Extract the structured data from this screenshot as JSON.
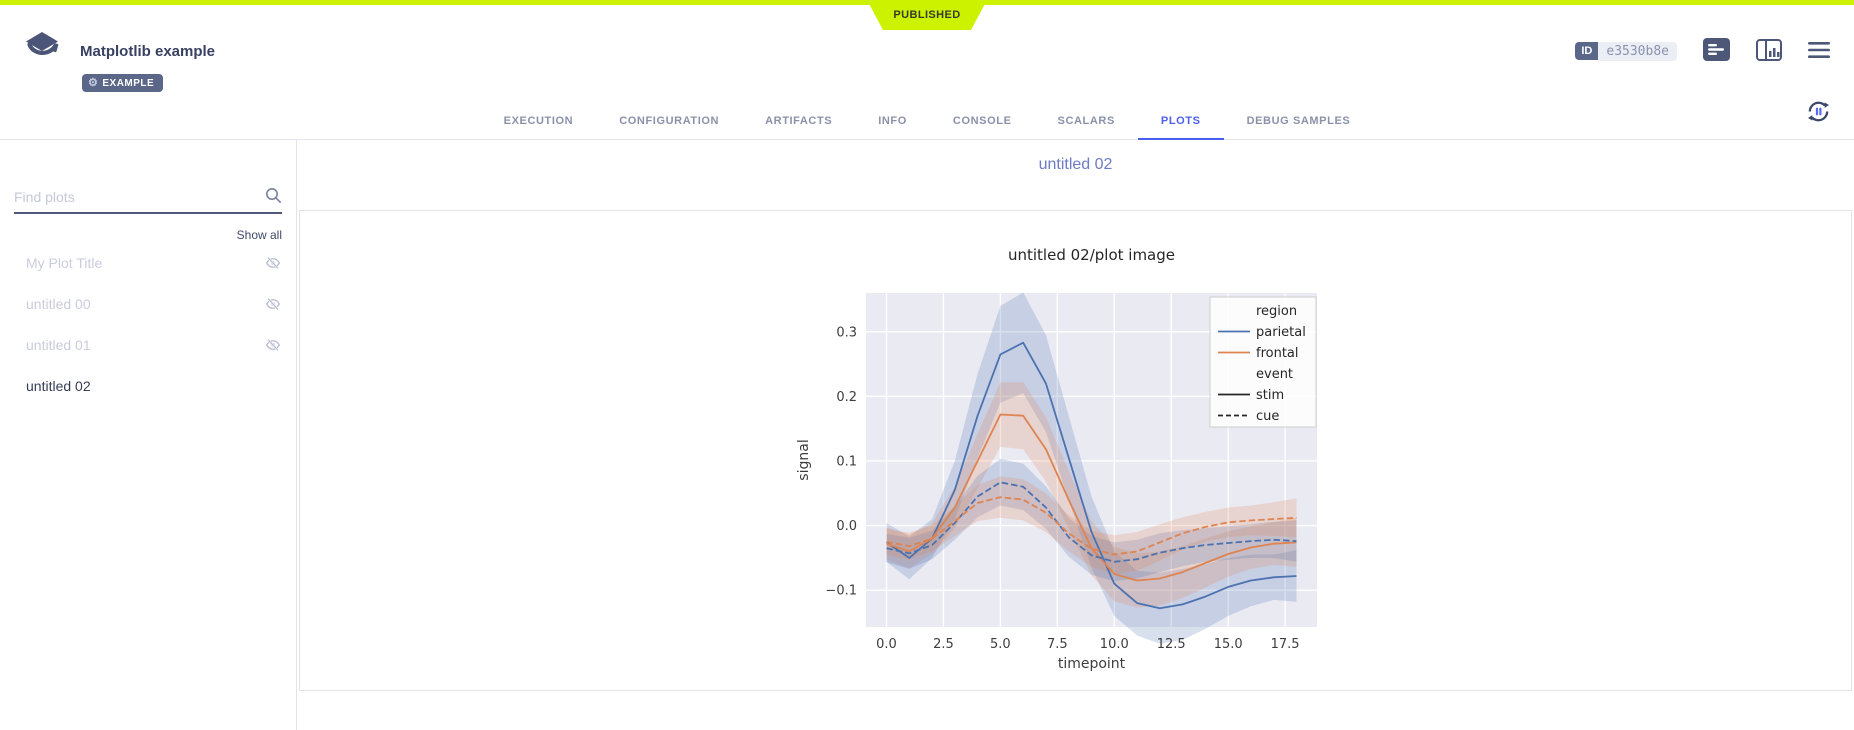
{
  "page": {
    "published_badge": "PUBLISHED"
  },
  "header": {
    "title": "Matplotlib example",
    "tag": "EXAMPLE",
    "id_label": "ID",
    "id_value": "e3530b8e",
    "tabs": [
      "EXECUTION",
      "CONFIGURATION",
      "ARTIFACTS",
      "INFO",
      "CONSOLE",
      "SCALARS",
      "PLOTS",
      "DEBUG SAMPLES"
    ],
    "active_tab": "PLOTS"
  },
  "sidebar": {
    "search_placeholder": "Find plots",
    "show_all_label": "Show all",
    "plots": [
      {
        "label": "My Plot Title",
        "hidden": true,
        "selected": false
      },
      {
        "label": "untitled 00",
        "hidden": true,
        "selected": false
      },
      {
        "label": "untitled 01",
        "hidden": true,
        "selected": false
      },
      {
        "label": "untitled 02",
        "hidden": false,
        "selected": true
      }
    ]
  },
  "main": {
    "heading": "untitled 02"
  },
  "colors": {
    "accent_green": "#cdf200",
    "navy": "#384161",
    "icon_navy": "#4d5878",
    "tab_active_blue": "#4a5ff0",
    "series_blue": "#4c72b0",
    "series_orange": "#dd8452",
    "plot_bg": "#eaeaf2"
  },
  "chart_data": {
    "type": "line",
    "title": "untitled 02/plot image",
    "xlabel": "timepoint",
    "ylabel": "signal",
    "xlim": [
      -0.9,
      18.9
    ],
    "ylim": [
      -0.157,
      0.36
    ],
    "xticks": [
      0.0,
      2.5,
      5.0,
      7.5,
      10.0,
      12.5,
      15.0,
      17.5
    ],
    "yticks": [
      -0.1,
      0.0,
      0.1,
      0.2,
      0.3
    ],
    "grid": true,
    "style": "seaborn-darkgrid",
    "legend_position": "upper right",
    "x": [
      0,
      1,
      2,
      3,
      4,
      5,
      6,
      7,
      8,
      9,
      10,
      11,
      12,
      13,
      14,
      15,
      16,
      17,
      18
    ],
    "series": [
      {
        "name": "parietal / stim",
        "color": "#4c72b0",
        "dash": "solid",
        "values": [
          -0.026,
          -0.05,
          -0.02,
          0.055,
          0.17,
          0.265,
          0.283,
          0.22,
          0.105,
          -0.01,
          -0.09,
          -0.12,
          -0.128,
          -0.122,
          -0.11,
          -0.095,
          -0.085,
          -0.08,
          -0.078
        ],
        "ci": [
          0.03,
          0.033,
          0.03,
          0.045,
          0.065,
          0.075,
          0.078,
          0.075,
          0.065,
          0.055,
          0.05,
          0.05,
          0.055,
          0.055,
          0.05,
          0.045,
          0.04,
          0.035,
          0.04
        ]
      },
      {
        "name": "frontal / stim",
        "color": "#dd8452",
        "dash": "solid",
        "values": [
          -0.028,
          -0.04,
          -0.02,
          0.028,
          0.1,
          0.172,
          0.17,
          0.118,
          0.04,
          -0.035,
          -0.075,
          -0.085,
          -0.082,
          -0.072,
          -0.058,
          -0.044,
          -0.034,
          -0.028,
          -0.026
        ],
        "ci": [
          0.025,
          0.026,
          0.024,
          0.032,
          0.042,
          0.05,
          0.052,
          0.05,
          0.045,
          0.042,
          0.042,
          0.042,
          0.042,
          0.04,
          0.038,
          0.035,
          0.033,
          0.033,
          0.038
        ]
      },
      {
        "name": "parietal / cue",
        "color": "#4c72b0",
        "dash": "dashed",
        "values": [
          -0.035,
          -0.043,
          -0.03,
          0.004,
          0.045,
          0.067,
          0.06,
          0.028,
          -0.018,
          -0.046,
          -0.056,
          -0.052,
          -0.042,
          -0.035,
          -0.03,
          -0.027,
          -0.024,
          -0.022,
          -0.024
        ],
        "ci": [
          0.022,
          0.024,
          0.022,
          0.026,
          0.032,
          0.036,
          0.036,
          0.033,
          0.03,
          0.03,
          0.03,
          0.03,
          0.03,
          0.028,
          0.026,
          0.026,
          0.026,
          0.028,
          0.032
        ]
      },
      {
        "name": "frontal / cue",
        "color": "#dd8452",
        "dash": "dashed",
        "values": [
          -0.025,
          -0.032,
          -0.02,
          0.007,
          0.035,
          0.044,
          0.04,
          0.02,
          -0.012,
          -0.036,
          -0.045,
          -0.04,
          -0.026,
          -0.012,
          -0.002,
          0.005,
          0.008,
          0.01,
          0.012
        ],
        "ci": [
          0.02,
          0.021,
          0.02,
          0.023,
          0.028,
          0.032,
          0.032,
          0.03,
          0.028,
          0.028,
          0.03,
          0.03,
          0.028,
          0.025,
          0.023,
          0.023,
          0.023,
          0.026,
          0.03
        ]
      }
    ],
    "legend": [
      {
        "label": "region",
        "header": true
      },
      {
        "label": "parietal",
        "color": "#4c72b0",
        "dash": "solid"
      },
      {
        "label": "frontal",
        "color": "#dd8452",
        "dash": "solid"
      },
      {
        "label": "event",
        "header": true
      },
      {
        "label": "stim",
        "color": "#262626",
        "dash": "solid"
      },
      {
        "label": "cue",
        "color": "#262626",
        "dash": "dashed"
      }
    ]
  }
}
